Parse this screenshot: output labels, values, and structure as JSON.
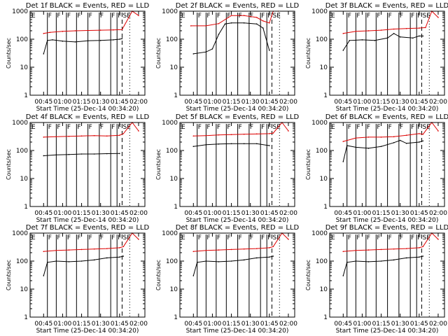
{
  "figure": {
    "ylabel": "Counts/sec",
    "xlabel": "Start Time (25-Dec-14 00:34:20)",
    "y_tick_labels": [
      "1",
      "10",
      "100",
      "1000"
    ],
    "x_tick_labels": [
      "00:45",
      "01:00",
      "01:15",
      "01:30",
      "01:45",
      "02:00"
    ],
    "marker_E": "E",
    "marker_F": "F",
    "marker_SE": "SE",
    "colors": {
      "events": "#000000",
      "lld": "#dd0000"
    }
  },
  "chart_data": [
    {
      "type": "line",
      "title": "Det 1f BLACK = Events, RED = LLD",
      "xlabel": "Start Time (25-Dec-14 00:34:20)",
      "ylabel": "Counts/sec",
      "ylim": [
        1,
        1000
      ],
      "yscale": "log",
      "x_ticks": [
        "00:45",
        "01:00",
        "01:15",
        "01:30",
        "01:45",
        "02:00"
      ],
      "series": [
        {
          "color": "red",
          "x": [
            "00:45",
            "00:50",
            "01:00",
            "01:10",
            "01:20",
            "01:30",
            "01:40",
            "01:47",
            "01:55",
            "02:00"
          ],
          "values": [
            160,
            175,
            190,
            200,
            205,
            210,
            215,
            220,
            1000,
            700
          ]
        },
        {
          "color": "black",
          "x": [
            "00:45",
            "00:48",
            "00:52",
            "01:00",
            "01:10",
            "01:20",
            "01:30",
            "01:40",
            "01:45",
            "01:47"
          ],
          "values": [
            30,
            90,
            95,
            85,
            80,
            88,
            90,
            95,
            100,
            105
          ]
        }
      ],
      "markers": {
        "F": [
          "00:48",
          "00:55",
          "01:03",
          "01:11",
          "01:20",
          "01:29",
          "01:38",
          "01:43"
        ],
        "SE": [
          "01:47",
          "01:53"
        ]
      }
    },
    {
      "type": "line",
      "title": "Det 2f BLACK = Events, RED = LLD",
      "xlabel": "Start Time (25-Dec-14 00:34:20)",
      "ylabel": "Counts/sec",
      "ylim": [
        1,
        1000
      ],
      "yscale": "log",
      "x_ticks": [
        "00:45",
        "01:00",
        "01:15",
        "01:30",
        "01:45",
        "02:00"
      ],
      "series": [
        {
          "color": "red",
          "x": [
            "00:43",
            "00:55",
            "01:05",
            "01:15",
            "01:25",
            "01:35",
            "01:40",
            "01:45",
            "01:48",
            "01:52"
          ],
          "values": [
            300,
            300,
            360,
            700,
            700,
            600,
            450,
            380,
            1000,
            1000
          ]
        },
        {
          "color": "black",
          "x": [
            "00:45",
            "00:55",
            "01:00",
            "01:05",
            "01:10",
            "01:15",
            "01:25",
            "01:35",
            "01:40",
            "01:45"
          ],
          "values": [
            30,
            35,
            45,
            150,
            350,
            380,
            380,
            350,
            250,
            40
          ]
        }
      ],
      "markers": {
        "F": [
          "00:48",
          "00:55",
          "01:03",
          "01:11",
          "01:20",
          "01:29",
          "01:38",
          "01:43"
        ],
        "SE": [
          "01:47",
          "01:53"
        ]
      }
    },
    {
      "type": "line",
      "title": "Det 3f BLACK = Events, RED = LLD",
      "xlabel": "Start Time (25-Dec-14 00:34:20)",
      "ylabel": "Counts/sec",
      "ylim": [
        1,
        1000
      ],
      "yscale": "log",
      "x_ticks": [
        "00:45",
        "01:00",
        "01:15",
        "01:30",
        "01:45",
        "02:00"
      ],
      "series": [
        {
          "color": "red",
          "x": [
            "00:45",
            "00:55",
            "01:05",
            "01:15",
            "01:25",
            "01:35",
            "01:45",
            "01:50",
            "01:55",
            "02:00"
          ],
          "values": [
            160,
            190,
            200,
            210,
            230,
            240,
            250,
            260,
            1000,
            600
          ]
        },
        {
          "color": "black",
          "x": [
            "00:45",
            "00:50",
            "01:00",
            "01:10",
            "01:20",
            "01:25",
            "01:30",
            "01:40",
            "01:45",
            "01:48"
          ],
          "values": [
            40,
            90,
            95,
            90,
            110,
            160,
            120,
            110,
            130,
            130
          ]
        }
      ],
      "markers": {
        "F": [
          "00:48",
          "00:55",
          "01:03",
          "01:11",
          "01:20",
          "01:29",
          "01:38",
          "01:43"
        ],
        "SE": [
          "01:47",
          "01:53"
        ]
      }
    },
    {
      "type": "line",
      "title": "Det 4f BLACK = Events, RED = LLD",
      "xlabel": "Start Time (25-Dec-14 00:34:20)",
      "ylabel": "Counts/sec",
      "ylim": [
        1,
        1000
      ],
      "yscale": "log",
      "x_ticks": [
        "00:45",
        "01:00",
        "01:15",
        "01:30",
        "01:45",
        "02:00"
      ],
      "series": [
        {
          "color": "red",
          "x": [
            "00:45",
            "00:55",
            "01:05",
            "01:15",
            "01:25",
            "01:35",
            "01:45",
            "01:48",
            "01:55",
            "02:00"
          ],
          "values": [
            300,
            310,
            320,
            330,
            340,
            330,
            350,
            400,
            1000,
            500
          ]
        },
        {
          "color": "black",
          "x": [
            "00:45",
            "00:55",
            "01:05",
            "01:15",
            "01:25",
            "01:35",
            "01:45"
          ],
          "values": [
            65,
            70,
            72,
            75,
            75,
            77,
            78
          ]
        }
      ],
      "markers": {
        "F": [
          "00:48",
          "00:55",
          "01:03",
          "01:11",
          "01:20",
          "01:29",
          "01:38",
          "01:43"
        ],
        "SE": [
          "01:47",
          "01:53"
        ]
      }
    },
    {
      "type": "line",
      "title": "Det 5f BLACK = Events, RED = LLD",
      "xlabel": "Start Time (25-Dec-14 00:34:20)",
      "ylabel": "Counts/sec",
      "ylim": [
        1,
        1000
      ],
      "yscale": "log",
      "x_ticks": [
        "00:45",
        "01:00",
        "01:15",
        "01:30",
        "01:45",
        "02:00"
      ],
      "series": [
        {
          "color": "red",
          "x": [
            "00:45",
            "00:55",
            "01:05",
            "01:15",
            "01:25",
            "01:35",
            "01:45",
            "01:48",
            "01:55",
            "02:00"
          ],
          "values": [
            330,
            340,
            360,
            370,
            380,
            390,
            400,
            420,
            1000,
            500
          ]
        },
        {
          "color": "black",
          "x": [
            "00:45",
            "00:55",
            "01:05",
            "01:15",
            "01:25",
            "01:35",
            "01:45"
          ],
          "values": [
            140,
            160,
            170,
            175,
            175,
            175,
            150
          ]
        }
      ],
      "markers": {
        "F": [
          "00:48",
          "00:55",
          "01:03",
          "01:11",
          "01:20",
          "01:29",
          "01:38",
          "01:43"
        ],
        "SE": [
          "01:47",
          "01:53"
        ]
      }
    },
    {
      "type": "line",
      "title": "Det 6f BLACK = Events, RED = LLD",
      "xlabel": "Start Time (25-Dec-14 00:34:20)",
      "ylabel": "Counts/sec",
      "ylim": [
        1,
        1000
      ],
      "yscale": "log",
      "x_ticks": [
        "00:45",
        "01:00",
        "01:15",
        "01:30",
        "01:45",
        "02:00"
      ],
      "series": [
        {
          "color": "red",
          "x": [
            "00:45",
            "00:55",
            "01:05",
            "01:15",
            "01:25",
            "01:35",
            "01:45",
            "01:48",
            "01:55",
            "02:00"
          ],
          "values": [
            210,
            280,
            300,
            300,
            310,
            350,
            400,
            380,
            1000,
            500
          ]
        },
        {
          "color": "black",
          "x": [
            "00:45",
            "00:48",
            "00:55",
            "01:05",
            "01:15",
            "01:25",
            "01:30",
            "01:35",
            "01:45",
            "01:48"
          ],
          "values": [
            40,
            150,
            130,
            120,
            140,
            190,
            230,
            180,
            200,
            220
          ]
        }
      ],
      "markers": {
        "F": [
          "00:48",
          "00:55",
          "01:03",
          "01:11",
          "01:20",
          "01:29",
          "01:38",
          "01:43"
        ],
        "SE": [
          "01:47",
          "01:53"
        ]
      }
    },
    {
      "type": "line",
      "title": "Det 7f BLACK = Events, RED = LLD",
      "xlabel": "Start Time (25-Dec-14 00:34:20)",
      "ylabel": "Counts/sec",
      "ylim": [
        1,
        1000
      ],
      "yscale": "log",
      "x_ticks": [
        "00:45",
        "01:00",
        "01:15",
        "01:30",
        "01:45",
        "02:00"
      ],
      "series": [
        {
          "color": "red",
          "x": [
            "00:45",
            "00:55",
            "01:05",
            "01:15",
            "01:25",
            "01:35",
            "01:45",
            "01:48",
            "01:55",
            "02:00"
          ],
          "values": [
            220,
            240,
            250,
            260,
            270,
            280,
            300,
            330,
            1000,
            600
          ]
        },
        {
          "color": "black",
          "x": [
            "00:45",
            "00:48",
            "00:55",
            "01:05",
            "01:15",
            "01:25",
            "01:35",
            "01:45",
            "01:48"
          ],
          "values": [
            30,
            90,
            100,
            95,
            100,
            110,
            130,
            140,
            150
          ]
        }
      ],
      "markers": {
        "F": [
          "00:48",
          "00:55",
          "01:03",
          "01:11",
          "01:20",
          "01:29",
          "01:38",
          "01:43"
        ],
        "SE": [
          "01:47",
          "01:53"
        ]
      }
    },
    {
      "type": "line",
      "title": "Det 8f BLACK = Events, RED = LLD",
      "xlabel": "Start Time (25-Dec-14 00:34:20)",
      "ylabel": "Counts/sec",
      "ylim": [
        1,
        1000
      ],
      "yscale": "log",
      "x_ticks": [
        "00:45",
        "01:00",
        "01:15",
        "01:30",
        "01:45",
        "02:00"
      ],
      "series": [
        {
          "color": "red",
          "x": [
            "00:45",
            "00:55",
            "01:05",
            "01:15",
            "01:25",
            "01:35",
            "01:45",
            "01:48",
            "01:55",
            "02:00"
          ],
          "values": [
            220,
            240,
            250,
            260,
            270,
            280,
            300,
            330,
            1000,
            600
          ]
        },
        {
          "color": "black",
          "x": [
            "00:45",
            "00:48",
            "00:55",
            "01:05",
            "01:15",
            "01:25",
            "01:35",
            "01:45",
            "01:48"
          ],
          "values": [
            30,
            90,
            100,
            95,
            100,
            110,
            130,
            140,
            150
          ]
        }
      ],
      "markers": {
        "F": [
          "00:48",
          "00:55",
          "01:03",
          "01:11",
          "01:20",
          "01:29",
          "01:38",
          "01:43"
        ],
        "SE": [
          "01:47",
          "01:53"
        ]
      }
    },
    {
      "type": "line",
      "title": "Det 9f BLACK = Events, RED = LLD",
      "xlabel": "Start Time (25-Dec-14 00:34:20)",
      "ylabel": "Counts/sec",
      "ylim": [
        1,
        1000
      ],
      "yscale": "log",
      "x_ticks": [
        "00:45",
        "01:00",
        "01:15",
        "01:30",
        "01:45",
        "02:00"
      ],
      "series": [
        {
          "color": "red",
          "x": [
            "00:45",
            "00:55",
            "01:05",
            "01:15",
            "01:25",
            "01:35",
            "01:45",
            "01:48",
            "01:55",
            "02:00"
          ],
          "values": [
            220,
            240,
            250,
            260,
            270,
            280,
            300,
            330,
            1000,
            600
          ]
        },
        {
          "color": "black",
          "x": [
            "00:45",
            "00:48",
            "00:55",
            "01:05",
            "01:15",
            "01:25",
            "01:35",
            "01:45",
            "01:48"
          ],
          "values": [
            30,
            90,
            100,
            95,
            100,
            110,
            130,
            140,
            150
          ]
        }
      ],
      "markers": {
        "F": [
          "00:48",
          "00:55",
          "01:03",
          "01:11",
          "01:20",
          "01:29",
          "01:38",
          "01:43"
        ],
        "SE": [
          "01:47",
          "01:53"
        ]
      }
    }
  ]
}
